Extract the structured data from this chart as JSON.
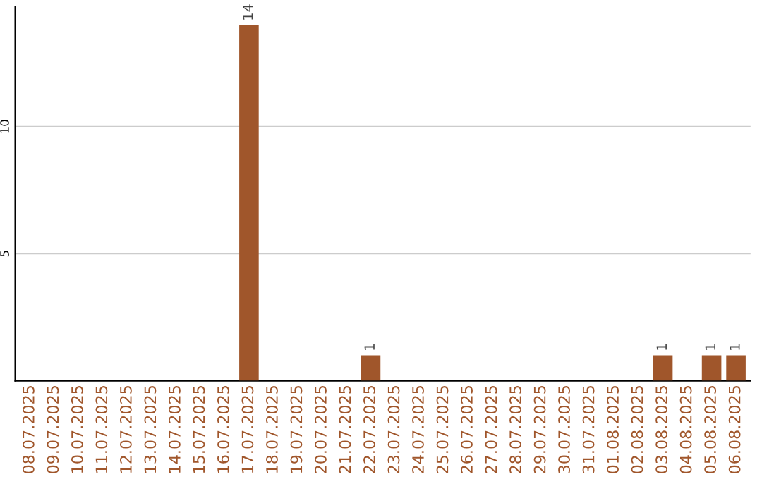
{
  "chart_data": {
    "type": "bar",
    "categories": [
      "08.07.2025",
      "09.07.2025",
      "10.07.2025",
      "11.07.2025",
      "12.07.2025",
      "13.07.2025",
      "14.07.2025",
      "15.07.2025",
      "16.07.2025",
      "17.07.2025",
      "18.07.2025",
      "19.07.2025",
      "20.07.2025",
      "21.07.2025",
      "22.07.2025",
      "23.07.2025",
      "24.07.2025",
      "25.07.2025",
      "26.07.2025",
      "27.07.2025",
      "28.07.2025",
      "29.07.2025",
      "30.07.2025",
      "31.07.2025",
      "01.08.2025",
      "02.08.2025",
      "03.08.2025",
      "04.08.2025",
      "05.08.2025",
      "06.08.2025"
    ],
    "values": [
      0,
      0,
      0,
      0,
      0,
      0,
      0,
      0,
      0,
      14,
      0,
      0,
      0,
      0,
      1,
      0,
      0,
      0,
      0,
      0,
      0,
      0,
      0,
      0,
      0,
      0,
      1,
      0,
      1,
      1
    ],
    "value_labels": [
      null,
      null,
      null,
      null,
      null,
      null,
      null,
      null,
      null,
      "14",
      null,
      null,
      null,
      null,
      "1",
      null,
      null,
      null,
      null,
      null,
      null,
      null,
      null,
      null,
      null,
      null,
      "1",
      null,
      "1",
      "1"
    ],
    "color": "#a0562b",
    "ylim": [
      0,
      14.7
    ],
    "yticks": [
      5,
      10
    ],
    "grid": "y"
  }
}
